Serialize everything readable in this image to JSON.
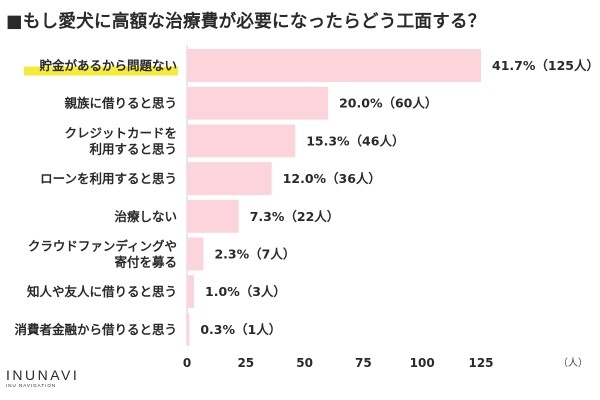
{
  "title": "■もし愛犬に高額な治療費が必要になったらどう工面する？",
  "logo": {
    "main": "INUNAVI",
    "sub": "INU NAVIGATION"
  },
  "colors": {
    "bar": "#fcd5dc",
    "highlight": "#f5ec3a",
    "axis": "#d0d0d0",
    "text": "#2a2a2a"
  },
  "chart_data": {
    "type": "bar",
    "orientation": "horizontal",
    "title": "■もし愛犬に高額な治療費が必要になったらどう工面する？",
    "categories": [
      [
        "貯金があるから問題ない"
      ],
      [
        "親族に借りると思う"
      ],
      [
        "クレジットカードを",
        "利用すると思う"
      ],
      [
        "ローンを利用すると思う"
      ],
      [
        "治療しない"
      ],
      [
        "クラウドファンディングや",
        "寄付を募る"
      ],
      [
        "知人や友人に借りると思う"
      ],
      [
        "消費者金融から借りると思う"
      ]
    ],
    "values": [
      125,
      60,
      46,
      36,
      22,
      7,
      3,
      1
    ],
    "value_labels": [
      "41.7%（125人）",
      "20.0%（60人）",
      "15.3%（46人）",
      "12.0%（36人）",
      "7.3%（22人）",
      "2.3%（7人）",
      "1.0%（3人）",
      "0.3%（1人）"
    ],
    "highlighted_category_index": 0,
    "xlim": [
      0,
      125
    ],
    "xticks": [
      "0",
      "25",
      "50",
      "75",
      "100",
      "125"
    ],
    "xunit": "（人）",
    "grid": false,
    "legend": "none"
  }
}
